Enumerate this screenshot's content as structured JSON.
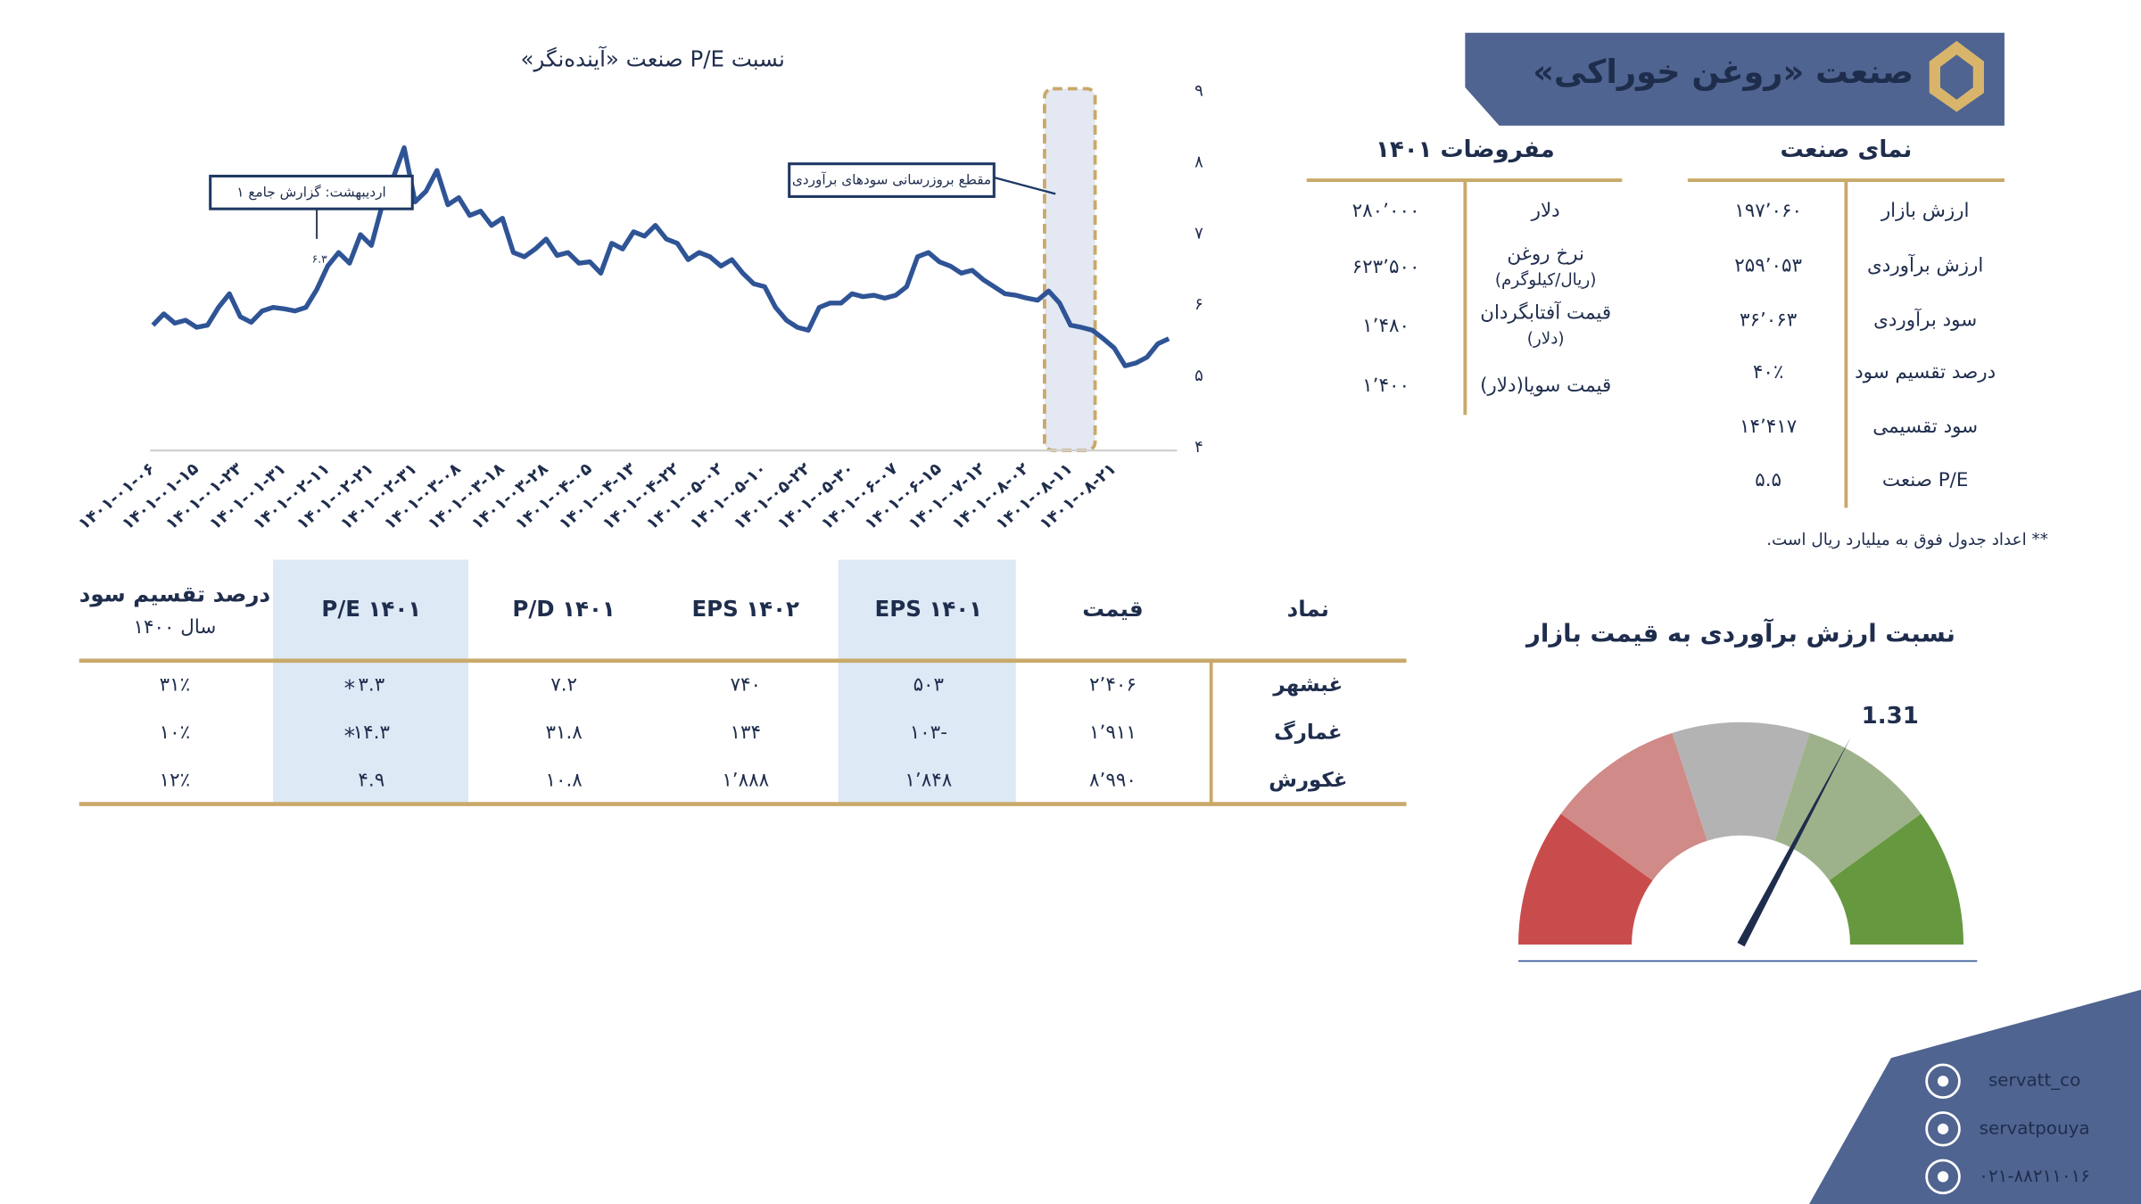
{
  "header": {
    "title": "صنعت «روغن خوراکی»"
  },
  "industry": {
    "title": "نمای صنعت",
    "rows": [
      {
        "label": "ارزش بازار",
        "value": "۱۹۷٬۰۶۰"
      },
      {
        "label": "ارزش برآوردی",
        "value": "۲۵۹٬۰۵۳"
      },
      {
        "label": "سود برآوردی",
        "value": "۳۶٬۰۶۳"
      },
      {
        "label": "درصد تقسیم سود",
        "value": "۴۰٪"
      },
      {
        "label": "سود تقسیمی",
        "value": "۱۴٬۴۱۷"
      },
      {
        "label": "P/E صنعت",
        "value": "۵.۵"
      }
    ]
  },
  "assumptions": {
    "title": "مفروضات ۱۴۰۱",
    "rows": [
      {
        "label": [
          "دلار"
        ],
        "value": "۲۸۰٬۰۰۰"
      },
      {
        "label": [
          "نرخ روغن",
          "(ریال/کیلوگرم)"
        ],
        "value": "۶۲۳٬۵۰۰"
      },
      {
        "label": [
          "قیمت آفتابگردان",
          "(دلار)"
        ],
        "value": "۱٬۴۸۰"
      },
      {
        "label": [
          "قیمت سویا(دلار)"
        ],
        "value": "۱٬۴۰۰"
      }
    ]
  },
  "note": "** اعداد جدول فوق به میلیارد ریال است.",
  "chart_data": [
    {
      "type": "line",
      "title": "نسبت P/E صنعت «آینده‌نگر»",
      "color": "#2f5496",
      "categories": [
        "۱۴۰۱-۰۱-۰۶",
        null,
        null,
        null,
        "۱۴۰۱-۰۱-۱۵",
        null,
        null,
        null,
        "۱۴۰۱-۰۱-۲۳",
        null,
        null,
        null,
        "۱۴۰۱-۰۱-۳۱",
        null,
        null,
        null,
        "۱۴۰۱-۰۲-۱۱",
        null,
        null,
        null,
        "۱۴۰۱-۰۲-۲۱",
        null,
        null,
        null,
        "۱۴۰۱-۰۲-۳۱",
        null,
        null,
        null,
        "۱۴۰۱-۰۳-۰۸",
        null,
        null,
        null,
        "۱۴۰۱-۰۳-۱۸",
        null,
        null,
        null,
        "۱۴۰۱-۰۳-۲۸",
        null,
        null,
        null,
        "۱۴۰۱-۰۴-۰۵",
        null,
        null,
        null,
        "۱۴۰۱-۰۴-۱۳",
        null,
        null,
        null,
        "۱۴۰۱-۰۴-۲۲",
        null,
        null,
        null,
        "۱۴۰۱-۰۵-۰۲",
        null,
        null,
        null,
        "۱۴۰۱-۰۵-۱۰",
        null,
        null,
        null,
        "۱۴۰۱-۰۵-۲۲",
        null,
        null,
        null,
        "۱۴۰۱-۰۵-۳۰",
        null,
        null,
        null,
        "۱۴۰۱-۰۶-۰۷",
        null,
        null,
        null,
        "۱۴۰۱-۰۶-۱۵",
        null,
        null,
        null,
        "۱۴۰۱-۰۷-۱۲",
        null,
        null,
        null,
        "۱۴۰۱-۰۸-۰۲",
        null,
        null,
        null,
        "۱۴۰۱-۰۸-۱۱",
        null,
        null,
        null,
        "۱۴۰۱-۰۸-۲۱",
        null,
        null,
        null,
        null,
        null
      ],
      "values": [
        5.72,
        5.88,
        5.75,
        5.79,
        5.69,
        5.72,
        5.97,
        6.16,
        5.84,
        5.76,
        5.92,
        5.97,
        5.95,
        5.92,
        5.97,
        6.22,
        6.55,
        6.74,
        6.59,
        6.99,
        6.84,
        7.41,
        7.79,
        8.21,
        7.45,
        7.6,
        7.89,
        7.41,
        7.51,
        7.26,
        7.32,
        7.12,
        7.22,
        6.74,
        6.68,
        6.79,
        6.93,
        6.7,
        6.74,
        6.59,
        6.61,
        6.45,
        6.87,
        6.79,
        7.03,
        6.97,
        7.12,
        6.93,
        6.87,
        6.64,
        6.74,
        6.68,
        6.55,
        6.64,
        6.45,
        6.3,
        6.26,
        5.97,
        5.79,
        5.69,
        5.65,
        5.97,
        6.03,
        6.03,
        6.16,
        6.12,
        6.14,
        6.1,
        6.14,
        6.26,
        6.68,
        6.74,
        6.61,
        6.55,
        6.45,
        6.49,
        6.36,
        6.26,
        6.16,
        6.14,
        6.1,
        6.07,
        6.2,
        6.03,
        5.72,
        5.69,
        5.65,
        5.53,
        5.4,
        5.15,
        5.19,
        5.27,
        5.46,
        5.53
      ],
      "ylim": [
        4,
        9
      ],
      "yticks": [
        {
          "value": 4,
          "label": "۴"
        },
        {
          "value": 5,
          "label": "۵"
        },
        {
          "value": 6,
          "label": "۶"
        },
        {
          "value": 7,
          "label": "۷"
        },
        {
          "value": 8,
          "label": "۸"
        },
        {
          "value": 9,
          "label": "۹"
        }
      ],
      "annotations": [
        "اردیبهشت: گزارش جامع ۱",
        "مقطع بروزرسانی سودهای برآوردی",
        "۶.۳"
      ]
    },
    {
      "type": "gauge",
      "title": "نسبت ارزش برآوردی به قیمت بازار",
      "value": 1.31,
      "ylim": [
        0,
        2
      ],
      "colors": [
        "#c94c4c",
        "#d08a88",
        "#b3b3b3",
        "#9db28a",
        "#66983f"
      ]
    }
  ],
  "table": {
    "columns": [
      {
        "title": "نماد"
      },
      {
        "title": "قیمت"
      },
      {
        "title": "EPS ۱۴۰۱"
      },
      {
        "title": "EPS ۱۴۰۲"
      },
      {
        "title": "P/D ۱۴۰۱"
      },
      {
        "title": "P/E  ۱۴۰۱"
      },
      {
        "title": "درصد تقسیم سود",
        "subtitle": "سال ۱۴۰۰"
      }
    ],
    "rows": [
      [
        "غبشهر",
        "۲٬۴۰۶",
        "۵۰۳",
        "۷۴۰",
        "۷.۲",
        "۳.۳",
        "۳۱٪"
      ],
      [
        "غمارگ",
        "۱٬۹۱۱",
        "-۱۰۳",
        "۱۳۴",
        "۳۱.۸",
        "۱۴.۳",
        "۱۰٪"
      ],
      [
        "غکورش",
        "۸٬۹۹۰",
        "۱٬۸۴۸",
        "۱٬۸۸۸",
        "۱۰.۸",
        "۴.۹",
        "۱۲٪"
      ]
    ],
    "flag": "*"
  },
  "contacts": [
    "servatt_co",
    "servatpouya",
    "۰۲۱-۸۸۲۱۱۰۱۶"
  ]
}
